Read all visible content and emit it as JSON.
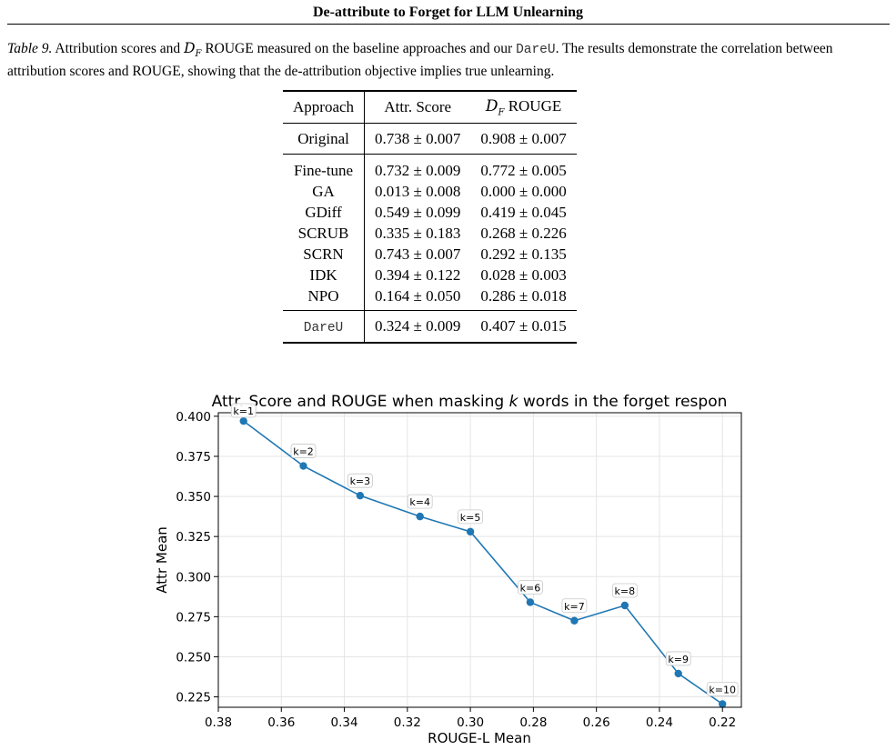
{
  "header": {
    "title": "De-attribute to Forget for LLM Unlearning"
  },
  "caption": {
    "label": "Table 9.",
    "text_1": "Attribution scores and",
    "cal_symbol": "D",
    "cal_sub": "F",
    "text_2": "ROUGE measured on the baseline approaches and our",
    "method": "DareU",
    "text_3": ". The results demonstrate the correlation between attribution scores and ROUGE, showing that the de-attribution objective implies true unlearning."
  },
  "table": {
    "headers": {
      "approach": "Approach",
      "attr": "Attr. Score",
      "rouge": "ROUGE"
    },
    "original": {
      "name": "Original",
      "attr": "0.738 ± 0.007",
      "rouge": "0.908 ± 0.007"
    },
    "baselines": [
      {
        "name": "Fine-tune",
        "attr": "0.732 ± 0.009",
        "rouge": "0.772 ± 0.005"
      },
      {
        "name": "GA",
        "attr": "0.013 ± 0.008",
        "rouge": "0.000 ± 0.000"
      },
      {
        "name": "GDiff",
        "attr": "0.549 ± 0.099",
        "rouge": "0.419 ± 0.045"
      },
      {
        "name": "SCRUB",
        "attr": "0.335 ± 0.183",
        "rouge": "0.268 ± 0.226"
      },
      {
        "name": "SCRN",
        "attr": "0.743 ± 0.007",
        "rouge": "0.292 ± 0.135"
      },
      {
        "name": "IDK",
        "attr": "0.394 ± 0.122",
        "rouge": "0.028 ± 0.003"
      },
      {
        "name": "NPO",
        "attr": "0.164 ± 0.050",
        "rouge": "0.286 ± 0.018"
      }
    ],
    "ours": {
      "name": "DareU",
      "attr": "0.324 ± 0.009",
      "rouge": "0.407 ± 0.015"
    }
  },
  "chart_data": {
    "type": "line",
    "title_prefix": "Attr. Score and ROUGE when masking ",
    "title_var": "k",
    "title_suffix": " words in the forget respon",
    "xlabel": "ROUGE-L Mean",
    "ylabel": "Attr Mean",
    "xlim": [
      0.38,
      0.214
    ],
    "ylim": [
      0.2185,
      0.4022
    ],
    "x_inverted": true,
    "grid": true,
    "line_color": "#1f77b4",
    "xticks": [
      0.38,
      0.36,
      0.34,
      0.32,
      0.3,
      0.28,
      0.26,
      0.24,
      0.22
    ],
    "xtick_labels": [
      "0.38",
      "0.36",
      "0.34",
      "0.32",
      "0.30",
      "0.28",
      "0.26",
      "0.24",
      "0.22"
    ],
    "yticks": [
      0.4,
      0.375,
      0.35,
      0.325,
      0.3,
      0.275,
      0.25,
      0.225
    ],
    "ytick_labels": [
      "0.400",
      "0.375",
      "0.350",
      "0.325",
      "0.300",
      "0.275",
      "0.250",
      "0.225"
    ],
    "points": [
      {
        "label": "k=1",
        "x": 0.372,
        "y": 0.397
      },
      {
        "label": "k=2",
        "x": 0.353,
        "y": 0.369
      },
      {
        "label": "k=3",
        "x": 0.335,
        "y": 0.3505
      },
      {
        "label": "k=4",
        "x": 0.316,
        "y": 0.3375
      },
      {
        "label": "k=5",
        "x": 0.3,
        "y": 0.328
      },
      {
        "label": "k=6",
        "x": 0.281,
        "y": 0.284
      },
      {
        "label": "k=7",
        "x": 0.267,
        "y": 0.2725
      },
      {
        "label": "k=8",
        "x": 0.251,
        "y": 0.282
      },
      {
        "label": "k=9",
        "x": 0.234,
        "y": 0.2395
      },
      {
        "label": "k=10",
        "x": 0.22,
        "y": 0.2205
      }
    ]
  }
}
